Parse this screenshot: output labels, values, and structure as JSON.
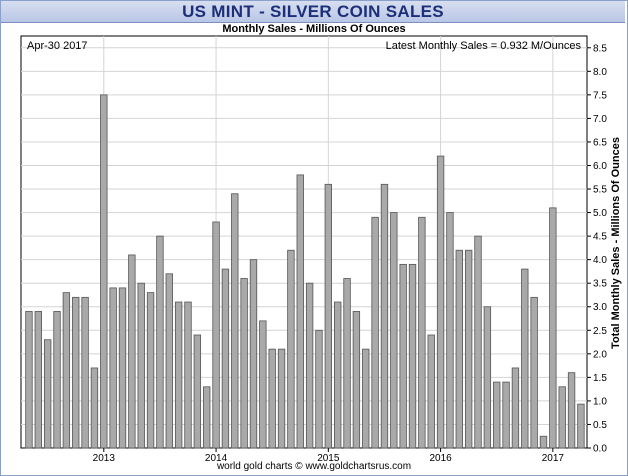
{
  "title": "US MINT - SILVER COIN SALES",
  "subtitle": "Monthly Sales - Millions Of Ounces",
  "footer": "world gold charts © www.goldchartsrus.com",
  "colors": {
    "title_text": "#1c2f78",
    "title_band": "#c8d2ec",
    "bar_fill": "#a9a9a9",
    "bar_edge": "#555555"
  },
  "chart_data": {
    "type": "bar",
    "title": "Monthly Sales - Millions Of Ounces",
    "xlabel": "",
    "ylabel": "Total Monthly Sales - Millions Of Ounces",
    "date_label": "Apr-30  2017",
    "latest_label": "Latest Monthly Sales = 0.932 M/Ounces",
    "ylim": [
      0,
      8.75
    ],
    "yticks": [
      "0.0",
      "0.5",
      "1.0",
      "1.5",
      "2.0",
      "2.5",
      "3.0",
      "3.5",
      "4.0",
      "4.5",
      "5.0",
      "5.5",
      "6.0",
      "6.5",
      "7.0",
      "7.5",
      "8.0",
      "8.5"
    ],
    "y_axis_side": "right",
    "grid": true,
    "x_tick_labels": [
      "2013",
      "2014",
      "2015",
      "2016",
      "2017"
    ],
    "start_month": "2012-05",
    "values": [
      2.9,
      2.9,
      2.3,
      2.9,
      3.3,
      3.2,
      3.2,
      1.7,
      7.5,
      3.4,
      3.4,
      4.1,
      3.5,
      3.3,
      4.5,
      3.7,
      3.1,
      3.1,
      2.4,
      1.3,
      4.8,
      3.8,
      5.4,
      3.6,
      4.0,
      2.7,
      2.1,
      2.1,
      4.2,
      5.8,
      3.5,
      2.5,
      5.6,
      3.1,
      3.6,
      2.9,
      2.1,
      4.9,
      5.6,
      5.0,
      3.9,
      3.9,
      4.9,
      2.4,
      6.2,
      5.0,
      4.2,
      4.2,
      4.5,
      3.0,
      1.4,
      1.4,
      1.7,
      3.8,
      3.2,
      0.25,
      5.1,
      1.3,
      1.6,
      0.932
    ]
  }
}
